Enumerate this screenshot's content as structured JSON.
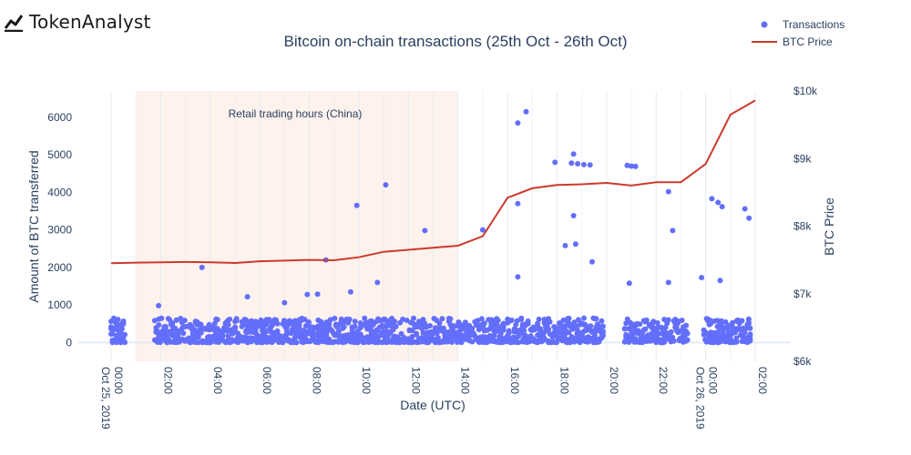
{
  "brand": {
    "name": "TokenAnalyst",
    "icon": "trend-line-logo-icon"
  },
  "colors": {
    "transactions": "#636efa",
    "btc_price": "#cc3a2c",
    "shade": "#fdeee6",
    "grid": "#e5ecf6",
    "text": "#2a3f5f"
  },
  "chart_data": {
    "type": "scatter",
    "title": "Bitcoin on-chain transactions (25th Oct - 26th Oct)",
    "xlabel": "Date (UTC)",
    "ylabel": "Amount of BTC transferred",
    "y2label": "BTC Price",
    "xlim": [
      "2019-10-25 00:00",
      "2019-10-26 02:00"
    ],
    "ylim": [
      -500,
      6700
    ],
    "y2lim": [
      6000,
      10000
    ],
    "x_ticks": [
      {
        "t": "2019-10-25 00:00",
        "label": "00:00",
        "sublabel": "Oct 25, 2019"
      },
      {
        "t": "2019-10-25 02:00",
        "label": "02:00"
      },
      {
        "t": "2019-10-25 04:00",
        "label": "04:00"
      },
      {
        "t": "2019-10-25 06:00",
        "label": "06:00"
      },
      {
        "t": "2019-10-25 08:00",
        "label": "08:00"
      },
      {
        "t": "2019-10-25 10:00",
        "label": "10:00"
      },
      {
        "t": "2019-10-25 12:00",
        "label": "12:00"
      },
      {
        "t": "2019-10-25 14:00",
        "label": "14:00"
      },
      {
        "t": "2019-10-25 16:00",
        "label": "16:00"
      },
      {
        "t": "2019-10-25 18:00",
        "label": "18:00"
      },
      {
        "t": "2019-10-25 20:00",
        "label": "20:00"
      },
      {
        "t": "2019-10-25 22:00",
        "label": "22:00"
      },
      {
        "t": "2019-10-26 00:00",
        "label": "00:00",
        "sublabel": "Oct 26, 2019"
      },
      {
        "t": "2019-10-26 02:00",
        "label": "02:00"
      }
    ],
    "y_ticks": [
      0,
      1000,
      2000,
      3000,
      4000,
      5000,
      6000
    ],
    "y_tick_labels": [
      "0",
      "1000",
      "2000",
      "3000",
      "4000",
      "5000",
      "6000"
    ],
    "y2_ticks": [
      6000,
      7000,
      8000,
      9000,
      10000
    ],
    "y2_tick_labels": [
      "$6k",
      "$7k",
      "$8k",
      "$9k",
      "$10k"
    ],
    "shaded_region": {
      "x0": "2019-10-25 01:00",
      "x1": "2019-10-25 14:00",
      "label": "Retail trading hours (China)"
    },
    "legend": {
      "position": "top-right",
      "entries": [
        {
          "name": "Transactions",
          "marker": "dot"
        },
        {
          "name": "BTC Price",
          "marker": "line"
        }
      ]
    },
    "series": [
      {
        "name": "BTC Price",
        "type": "line",
        "axis": "y2",
        "x": [
          "2019-10-25 00:00",
          "2019-10-25 01:00",
          "2019-10-25 02:00",
          "2019-10-25 03:00",
          "2019-10-25 04:00",
          "2019-10-25 05:00",
          "2019-10-25 06:00",
          "2019-10-25 07:00",
          "2019-10-25 08:00",
          "2019-10-25 09:00",
          "2019-10-25 10:00",
          "2019-10-25 11:00",
          "2019-10-25 12:00",
          "2019-10-25 13:00",
          "2019-10-25 14:00",
          "2019-10-25 15:00",
          "2019-10-25 16:00",
          "2019-10-25 17:00",
          "2019-10-25 18:00",
          "2019-10-25 19:00",
          "2019-10-25 20:00",
          "2019-10-25 21:00",
          "2019-10-25 22:00",
          "2019-10-25 23:00",
          "2019-10-26 00:00",
          "2019-10-26 01:00",
          "2019-10-26 02:00"
        ],
        "y": [
          7450,
          7460,
          7465,
          7470,
          7465,
          7455,
          7480,
          7490,
          7500,
          7495,
          7540,
          7620,
          7650,
          7680,
          7710,
          7850,
          8420,
          8560,
          8610,
          8620,
          8640,
          8600,
          8650,
          8650,
          8920,
          9650,
          9860
        ]
      },
      {
        "name": "Transactions",
        "type": "scatter",
        "axis": "y",
        "highlights": {
          "x": [
            "2019-10-25 03:40",
            "2019-10-25 08:40",
            "2019-10-25 09:55",
            "2019-10-25 11:05",
            "2019-10-25 12:40",
            "2019-10-25 15:00",
            "2019-10-25 16:25",
            "2019-10-25 16:45",
            "2019-10-25 16:25",
            "2019-10-25 17:55",
            "2019-10-25 18:35",
            "2019-10-25 18:40",
            "2019-10-25 18:50",
            "2019-10-25 19:05",
            "2019-10-25 19:20",
            "2019-10-25 20:50",
            "2019-10-25 21:00",
            "2019-10-25 21:10",
            "2019-10-25 22:30",
            "2019-10-25 22:40",
            "2019-10-26 00:15",
            "2019-10-26 00:30",
            "2019-10-26 00:40",
            "2019-10-26 01:35",
            "2019-10-26 01:45",
            "2019-10-25 18:40",
            "2019-10-25 18:20",
            "2019-10-25 18:45",
            "2019-10-25 19:25",
            "2019-10-25 16:25",
            "2019-10-25 10:45",
            "2019-10-25 09:40",
            "2019-10-25 05:30",
            "2019-10-25 07:55",
            "2019-10-25 23:50",
            "2019-10-26 00:35",
            "2019-10-25 22:30",
            "2019-10-25 20:55",
            "2019-10-25 01:55",
            "2019-10-25 07:00",
            "2019-10-25 08:20"
          ],
          "y": [
            2000,
            2200,
            3650,
            4200,
            2980,
            3000,
            5850,
            6150,
            3700,
            4800,
            4780,
            5020,
            4760,
            4740,
            4730,
            4720,
            4700,
            4690,
            4020,
            2980,
            3830,
            3730,
            3620,
            3560,
            3310,
            3380,
            2580,
            2620,
            2150,
            1750,
            1600,
            1350,
            1220,
            1280,
            1730,
            1650,
            1600,
            1580,
            980,
            1060,
            1290
          ]
        },
        "baseline_note": "dense band of transactions between 0 and ~700 BTC across all hours except gaps"
      }
    ]
  }
}
